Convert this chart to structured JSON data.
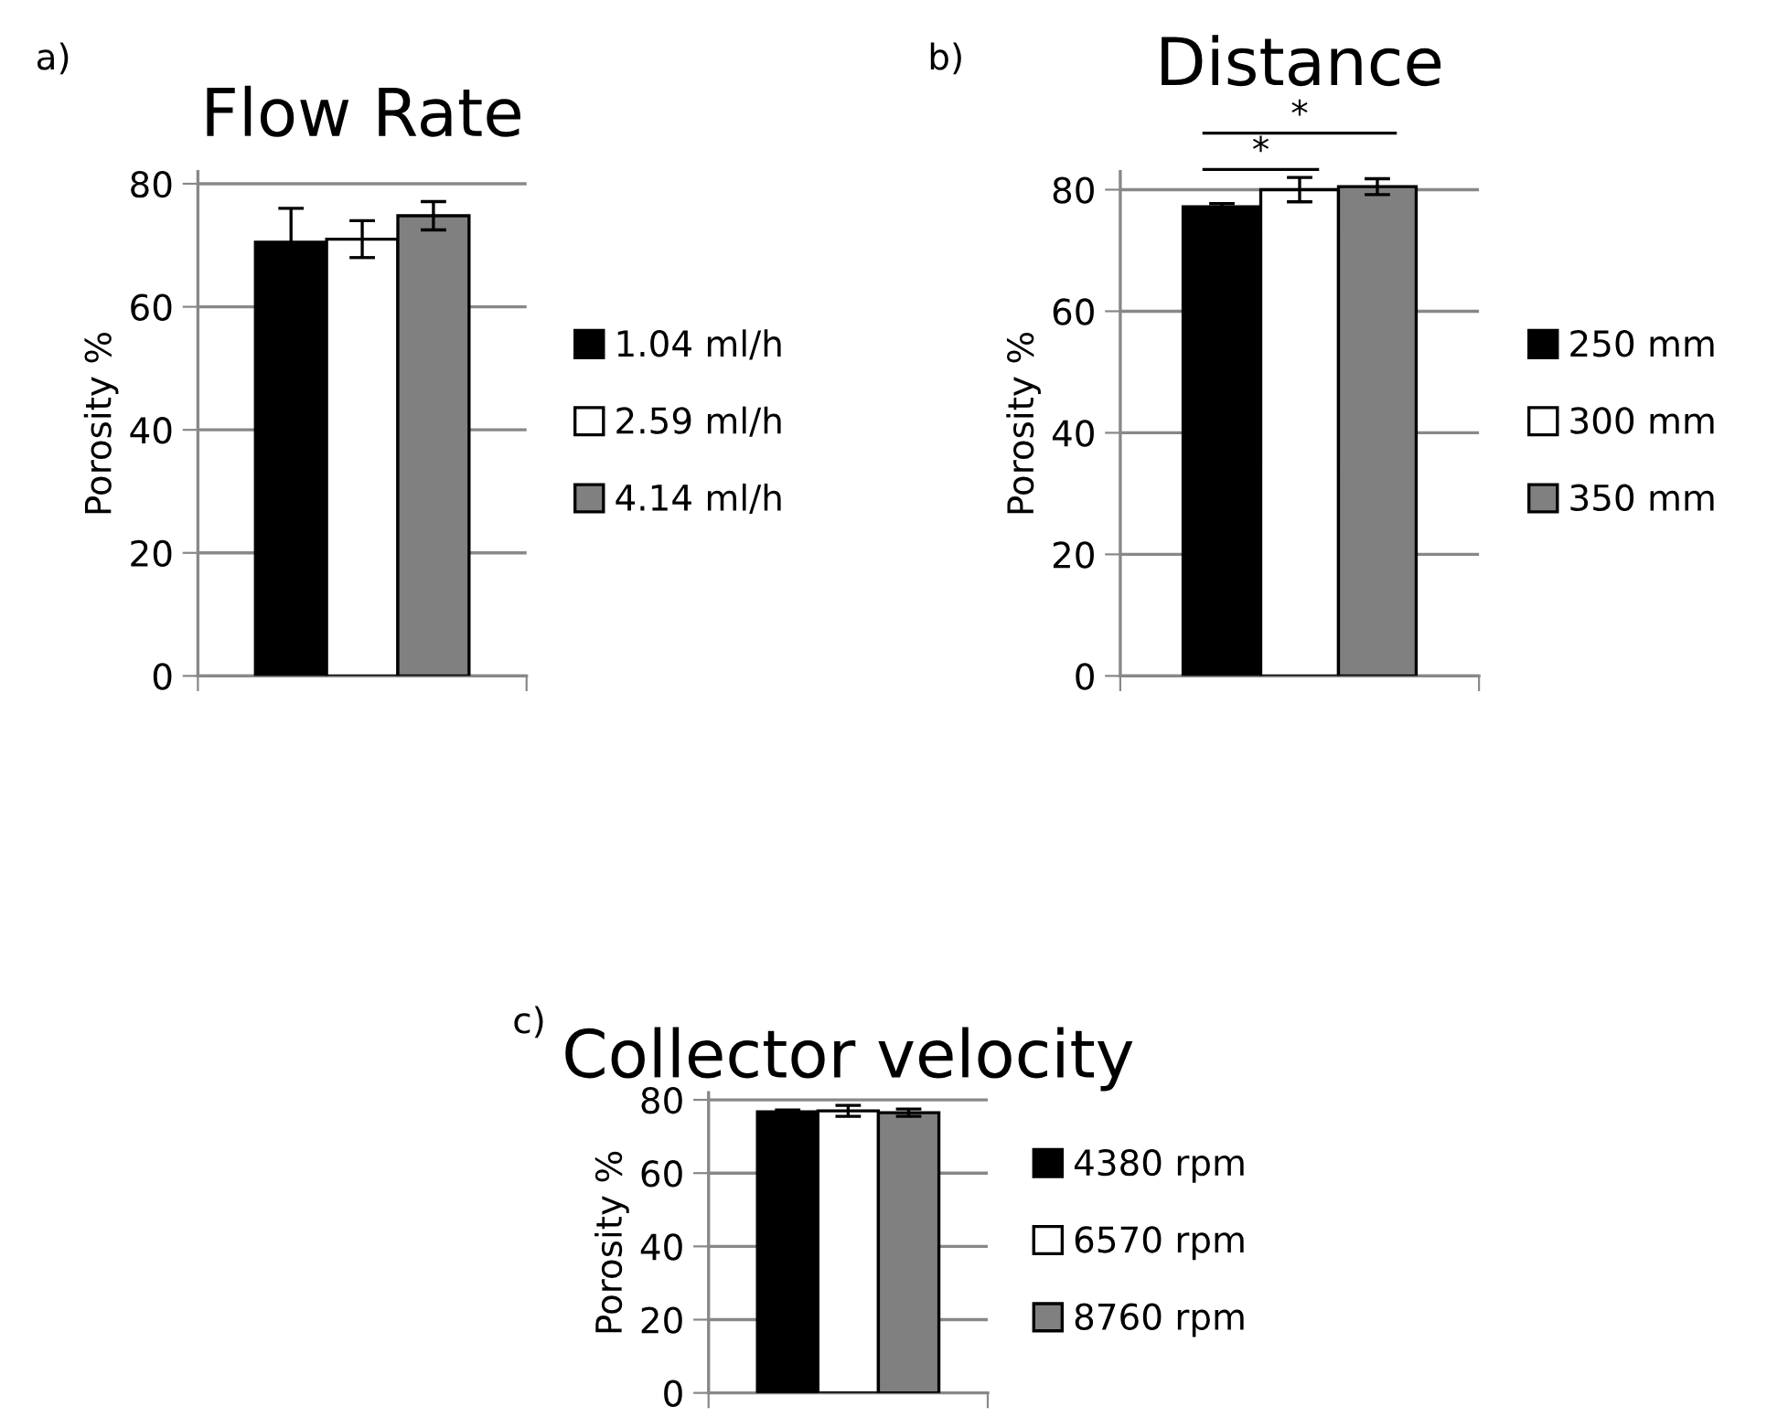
{
  "chart_data": [
    {
      "type": "bar",
      "title": "Flow Rate",
      "ylabel": "Porosity %",
      "categories": [
        null
      ],
      "ylim": [
        0,
        82
      ],
      "yticks": [
        0,
        20,
        40,
        60,
        80
      ],
      "grid": "y",
      "legend": "right",
      "annotations": [
        "a)"
      ],
      "series": [
        {
          "name": "1.04 ml/h",
          "color": "#000000",
          "values": [
            70.5
          ],
          "errors": [
            5.5
          ]
        },
        {
          "name": "2.59 ml/h",
          "color": "#ffffff",
          "values": [
            71
          ],
          "errors": [
            3
          ]
        },
        {
          "name": "4.14 ml/h",
          "color": "#808080",
          "values": [
            74.8
          ],
          "errors": [
            2.3
          ]
        }
      ]
    },
    {
      "type": "bar",
      "title": "Distance",
      "ylabel": "Porosity %",
      "categories": [
        null
      ],
      "ylim": [
        0,
        83
      ],
      "yticks": [
        0,
        20,
        40,
        60,
        80
      ],
      "grid": "y",
      "legend": "right",
      "annotations": [
        "b)",
        "*",
        "*"
      ],
      "series": [
        {
          "name": "250 mm",
          "color": "#000000",
          "values": [
            77.2
          ],
          "errors": [
            0.5
          ]
        },
        {
          "name": "300 mm",
          "color": "#ffffff",
          "values": [
            80
          ],
          "errors": [
            2
          ]
        },
        {
          "name": "350 mm",
          "color": "#808080",
          "values": [
            80.5
          ],
          "errors": [
            1.3
          ]
        }
      ]
    },
    {
      "type": "bar",
      "title": "Collector velocity",
      "ylabel": "Porosity %",
      "categories": [
        null
      ],
      "ylim": [
        0,
        82
      ],
      "yticks": [
        0,
        20,
        40,
        60,
        80
      ],
      "grid": "y",
      "legend": "right",
      "annotations": [
        "c)"
      ],
      "series": [
        {
          "name": "4380 rpm",
          "color": "#000000",
          "values": [
            76.7
          ],
          "errors": [
            0.5
          ]
        },
        {
          "name": "6570 rpm",
          "color": "#ffffff",
          "values": [
            77
          ],
          "errors": [
            1.5
          ]
        },
        {
          "name": "8760 rpm",
          "color": "#808080",
          "values": [
            76.5
          ],
          "errors": [
            1
          ]
        }
      ]
    }
  ]
}
